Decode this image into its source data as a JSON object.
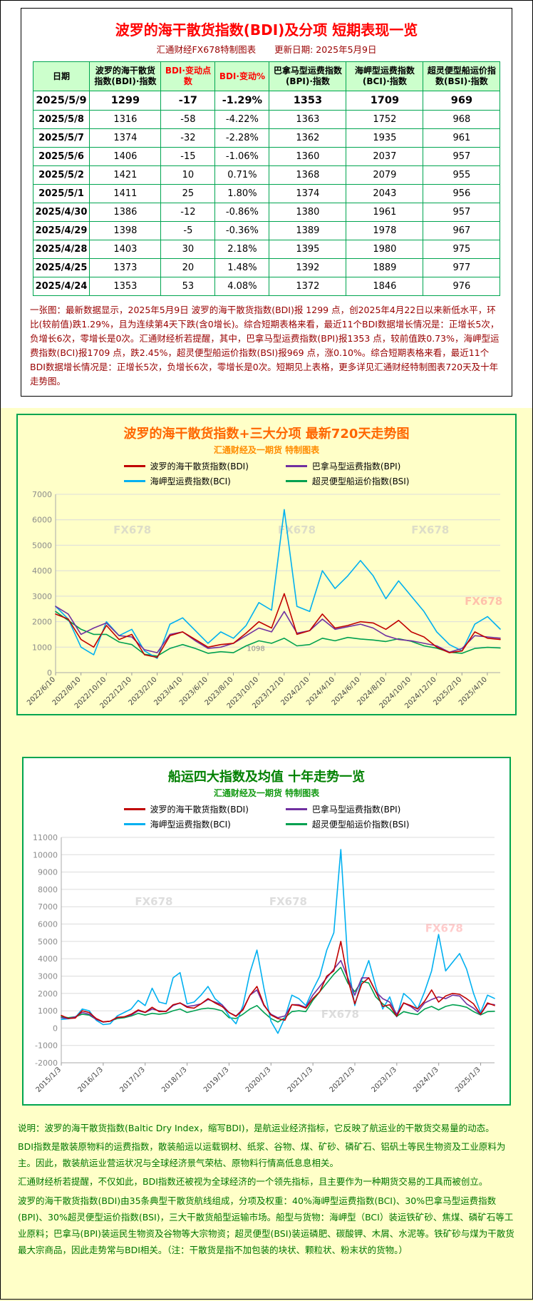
{
  "colors": {
    "page_bg": "#FFFFC8",
    "title_red": "#FF0000",
    "table_border_green": "#00A550",
    "table_header_bg": "#CCFFCC",
    "summary_red": "#990000",
    "chart720_title_orange": "#FF6600",
    "chart10y_title_green": "#008000",
    "notes_green": "#007700",
    "bdi_line": "#C00000",
    "bpi_line": "#7030A0",
    "bci_line": "#00B0F0",
    "bsi_line": "#00A050"
  },
  "report": {
    "title": "波罗的海干散货指数(BDI)及分项 短期表现一览",
    "source": "汇通财经FX678特制图表",
    "updated": "更新日期: 2025年5月9日",
    "table": {
      "headers": [
        "日期",
        "波罗的海干散货指数(BDI)·指数",
        "BDI·变动点数",
        "BDI·变动%",
        "巴拿马型运费指数(BPI)·指数",
        "海岬型运费指数(BCI)·指数",
        "超灵便型船运价指数(BSI)·指数"
      ],
      "rows": [
        [
          "2025/5/9",
          "1299",
          "-17",
          "-1.29%",
          "1353",
          "1709",
          "969"
        ],
        [
          "2025/5/8",
          "1316",
          "-58",
          "-4.22%",
          "1363",
          "1752",
          "968"
        ],
        [
          "2025/5/7",
          "1374",
          "-32",
          "-2.28%",
          "1362",
          "1935",
          "961"
        ],
        [
          "2025/5/6",
          "1406",
          "-15",
          "-1.06%",
          "1360",
          "2037",
          "957"
        ],
        [
          "2025/5/2",
          "1421",
          "10",
          "0.71%",
          "1368",
          "2079",
          "955"
        ],
        [
          "2025/5/1",
          "1411",
          "25",
          "1.80%",
          "1374",
          "2043",
          "956"
        ],
        [
          "2025/4/30",
          "1386",
          "-12",
          "-0.86%",
          "1380",
          "1961",
          "957"
        ],
        [
          "2025/4/29",
          "1398",
          "-5",
          "-0.36%",
          "1389",
          "1978",
          "967"
        ],
        [
          "2025/4/28",
          "1403",
          "30",
          "2.18%",
          "1395",
          "1980",
          "975"
        ],
        [
          "2025/4/25",
          "1373",
          "20",
          "1.48%",
          "1392",
          "1889",
          "977"
        ],
        [
          "2025/4/24",
          "1353",
          "53",
          "4.08%",
          "1372",
          "1846",
          "976"
        ]
      ]
    },
    "summary": "一张图：最新数据显示，2025年5月9日 波罗的海干散货指数(BDI)报 1299 点，创2025年4月22日以来新低水平，环比(较前值)跌1.29%，且为连续第4天下跌(含0增长)。综合短期表格来看，最近11个BDI数据增长情况是：正增长5次，负增长6次，零增长是0次。汇通财经析若提醒，其中，巴拿马型运费指数(BPI)报1353 点，较前值跌0.73%，海岬型运费指数(BCI)报1709 点，跌2.45%，超灵便型船运价指数(BSI)报969 点，涨0.10%。综合短期表格来看，最近11个BDI数据增长情况是：正增长5次，负增长6次，零增长是0次。短期见上表格，更多详见汇通财经特制图表720天及十年走势图。"
  },
  "chart_data": [
    {
      "type": "line",
      "title": "波罗的海干散货指数+三大分项 最新720天走势图",
      "subtitle": "汇通财经及一期货 特制图表",
      "ylim": [
        0,
        7000
      ],
      "yticks": [
        0,
        1000,
        2000,
        3000,
        4000,
        5000,
        6000,
        7000
      ],
      "xticks": [
        "2022/6/10",
        "2022/8/10",
        "2022/10/10",
        "2022/12/10",
        "2023/2/10",
        "2023/4/10",
        "2023/6/10",
        "2023/8/10",
        "2023/10/10",
        "2023/12/10",
        "2024/2/10",
        "2024/4/10",
        "2024/6/10",
        "2024/8/10",
        "2024/10/10",
        "2024/12/10",
        "2025/2/10",
        "2025/4/10"
      ],
      "xtick_span": 0.971,
      "grid": true,
      "legend_position": "top",
      "series": [
        {
          "name": "波罗的海干散货指数(BDI)",
          "color": "#C00000",
          "values": [
            2300,
            2100,
            1300,
            1000,
            1850,
            1300,
            1500,
            700,
            600,
            1450,
            1600,
            1300,
            1000,
            1100,
            1150,
            1550,
            2000,
            1750,
            3100,
            1500,
            1650,
            2300,
            1750,
            1850,
            2000,
            1950,
            1700,
            2050,
            1600,
            1400,
            1000,
            780,
            850,
            1600,
            1350,
            1299
          ]
        },
        {
          "name": "巴拿马型运费指数(BPI)",
          "color": "#7030A0",
          "values": [
            2600,
            2300,
            1500,
            1750,
            1950,
            1450,
            1400,
            900,
            780,
            1500,
            1600,
            1250,
            950,
            1000,
            1150,
            1450,
            1750,
            1600,
            2400,
            1550,
            1650,
            2100,
            1700,
            1800,
            1900,
            1750,
            1450,
            1300,
            1250,
            1150,
            1050,
            800,
            950,
            1450,
            1400,
            1353
          ]
        },
        {
          "name": "海岬型运费指数(BCI)",
          "color": "#00B0F0",
          "values": [
            2600,
            2100,
            1000,
            700,
            2000,
            1450,
            1700,
            850,
            560,
            1900,
            2150,
            1650,
            1150,
            1600,
            1350,
            1850,
            2750,
            2450,
            6400,
            2600,
            2400,
            4000,
            3300,
            3800,
            4400,
            3800,
            2900,
            3600,
            3000,
            2400,
            1600,
            1100,
            850,
            1900,
            2200,
            1709
          ]
        },
        {
          "name": "超灵便型船运价指数(BSI)",
          "color": "#00A050",
          "values": [
            2400,
            2050,
            1700,
            1500,
            1500,
            1200,
            1100,
            720,
            650,
            950,
            1100,
            950,
            760,
            820,
            780,
            1050,
            1250,
            1150,
            1350,
            1050,
            1100,
            1350,
            1250,
            1380,
            1320,
            1280,
            1220,
            1330,
            1230,
            1050,
            960,
            800,
            760,
            950,
            990,
            969
          ]
        }
      ],
      "watermarks": [
        {
          "text": "FX678",
          "x": 0.13,
          "y": 0.22,
          "color": "#C8C8C8"
        },
        {
          "text": "FX678",
          "x": 0.5,
          "y": 0.22,
          "color": "#C8C8C8"
        },
        {
          "text": "FX678",
          "x": 0.8,
          "y": 0.22,
          "color": "#C8C8C8"
        },
        {
          "text": "FX678",
          "x": 0.92,
          "y": 0.62,
          "color": "#FF9999"
        }
      ],
      "annotations": [
        {
          "text": "1098",
          "x": 0.43,
          "y_value": 850
        }
      ]
    },
    {
      "type": "line",
      "title": "船运四大指数及均值 十年走势一览",
      "subtitle": "汇通财经及一期货 特制图表",
      "ylim": [
        -2000,
        11000
      ],
      "yticks": [
        -2000,
        -1000,
        0,
        1000,
        2000,
        3000,
        4000,
        5000,
        6000,
        7000,
        8000,
        9000,
        10000,
        11000
      ],
      "xticks": [
        "2015/1/3",
        "2016/1/3",
        "2017/1/3",
        "2018/1/3",
        "2019/1/3",
        "2020/1/3",
        "2021/1/3",
        "2022/1/3",
        "2023/1/3",
        "2024/1/3",
        "2025/1/3"
      ],
      "xtick_span": 0.968,
      "grid": true,
      "legend_position": "top",
      "series": [
        {
          "name": "波罗的海干散货指数(BDI)",
          "color": "#C00000",
          "values": [
            730,
            560,
            580,
            1000,
            900,
            550,
            360,
            400,
            620,
            650,
            800,
            1050,
            910,
            1200,
            950,
            970,
            1350,
            1450,
            1200,
            1150,
            1400,
            1700,
            1450,
            1250,
            900,
            680,
            1050,
            1900,
            2400,
            1350,
            760,
            550,
            450,
            1350,
            1300,
            1150,
            1700,
            2100,
            3000,
            3300,
            5000,
            2800,
            1400,
            2550,
            2900,
            2100,
            1250,
            1350,
            680,
            1450,
            1300,
            1100,
            1550,
            2200,
            1500,
            1850,
            2000,
            1950,
            1700,
            1400,
            800,
            1450,
            1299
          ]
        },
        {
          "name": "巴拿马型运费指数(BPI)",
          "color": "#7030A0",
          "values": [
            600,
            550,
            650,
            900,
            800,
            500,
            350,
            400,
            600,
            650,
            750,
            1000,
            900,
            1100,
            1000,
            950,
            1300,
            1450,
            1250,
            1300,
            1400,
            1650,
            1500,
            1350,
            900,
            700,
            1100,
            1900,
            2200,
            1300,
            800,
            600,
            700,
            1350,
            1350,
            1200,
            1900,
            2400,
            2900,
            3400,
            3900,
            2900,
            1900,
            2900,
            2900,
            2100,
            1700,
            1500,
            800,
            1450,
            1250,
            950,
            1450,
            1650,
            1800,
            1700,
            1900,
            1850,
            1400,
            1150,
            780,
            1400,
            1353
          ]
        },
        {
          "name": "海岬型运费指数(BCI)",
          "color": "#00B0F0",
          "values": [
            500,
            540,
            600,
            1100,
            1000,
            450,
            200,
            250,
            700,
            900,
            1100,
            1600,
            1300,
            2300,
            1500,
            1400,
            2900,
            3200,
            1400,
            1500,
            1900,
            2400,
            1700,
            1350,
            700,
            250,
            1300,
            3200,
            4500,
            2300,
            400,
            -300,
            600,
            1900,
            1700,
            1300,
            2200,
            3000,
            4500,
            5500,
            10300,
            3800,
            1300,
            2800,
            3900,
            2400,
            1100,
            1800,
            650,
            2000,
            1650,
            1100,
            2100,
            3300,
            5400,
            3300,
            3800,
            4300,
            3400,
            2000,
            900,
            1900,
            1709
          ]
        },
        {
          "name": "超灵便型船运价指数(BSI)",
          "color": "#00A050",
          "values": [
            660,
            600,
            650,
            800,
            750,
            500,
            350,
            400,
            550,
            600,
            700,
            850,
            750,
            850,
            800,
            850,
            1000,
            1100,
            900,
            1000,
            1100,
            1150,
            1100,
            1000,
            600,
            550,
            800,
            1100,
            1300,
            900,
            550,
            350,
            600,
            950,
            1000,
            950,
            1600,
            2100,
            2600,
            3100,
            3500,
            2600,
            2100,
            2700,
            2600,
            1800,
            1400,
            1100,
            680,
            950,
            850,
            780,
            1100,
            1250,
            1050,
            1250,
            1350,
            1300,
            1200,
            950,
            760,
            950,
            969
          ]
        }
      ],
      "watermarks": [
        {
          "text": "FX678",
          "x": 0.17,
          "y": 0.3,
          "color": "#C8C8C8"
        },
        {
          "text": "FX678",
          "x": 0.48,
          "y": 0.3,
          "color": "#C8C8C8"
        },
        {
          "text": "FX678",
          "x": 0.84,
          "y": 0.42,
          "color": "#FFAAAA"
        },
        {
          "text": "FX678",
          "x": 0.6,
          "y": 0.8,
          "color": "#C8C8C8"
        }
      ],
      "annotations": []
    }
  ],
  "notes": {
    "paragraphs": [
      "说明：波罗的海干散货指数(Baltic Dry Index，缩写BDI)，是航运业经济指标，它反映了航运业的干散货交易量的动态。",
      "BDI指数是散装原物料的运费指数，散装船运以运载钢材、纸浆、谷物、煤、矿砂、磷矿石、铝矾土等民生物资及工业原料为主。因此，散装航运业营运状况与全球经济景气荣枯、原物料行情高低息息相关。",
      "汇通财经析若提醒，不仅如此，BDI指数还被视为全球经济的一个领先指标，且主要作为一种期货交易的工具而被创立。",
      "波罗的海干散货指数(BDI)由35条典型干散货航线组成，分项及权重：40%海岬型运费指数(BCI)、30%巴拿马型运费指数(BPI)、30%超灵便型运价指数(BSI)，三大干散货船型运输市场。船型与货物：海岬型（BCI）装运铁矿砂、焦煤、磷矿石等工业原料；巴拿马(BPI)装运民生物资及谷物等大宗物资；超灵便型(BSI)装运磷肥、碳酸钾、木屑、水泥等。铁矿砂与煤为干散货最大宗商品，因此走势常与BDI相关。（注：干散货是指不加包装的块状、颗粒状、粉末状的货物。）"
    ]
  }
}
